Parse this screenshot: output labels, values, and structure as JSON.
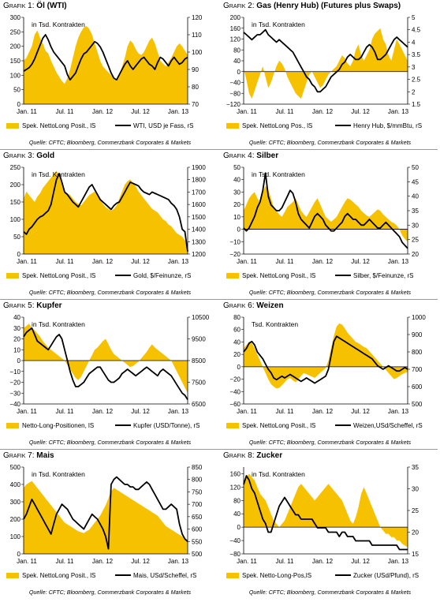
{
  "accent_color": "#F6C200",
  "line_color": "#000000",
  "source_text": "Quelle: CFTC; Bloomberg, Commerzbank Corporates & Markets",
  "chart_data": [
    {
      "prefix": "Grafik 1:",
      "name": "Öl (WTI)",
      "type": "area",
      "unit_label": "in Tsd. Kontrakten",
      "x_ticks": [
        "Jan. 11",
        "Jul. 11",
        "Jan. 12",
        "Jul. 12",
        "Jan. 13"
      ],
      "ylim_left": [
        0,
        300
      ],
      "yticks_left": [
        0,
        50,
        100,
        150,
        200,
        250,
        300
      ],
      "ylim_right": [
        70,
        120
      ],
      "yticks_right": [
        70,
        80,
        90,
        100,
        110,
        120
      ],
      "legend_area": "Spek. NettoLong Posit., lS",
      "legend_line": "WTI, USD je Fass, rS",
      "area_values": [
        150,
        160,
        180,
        200,
        240,
        255,
        230,
        210,
        185,
        175,
        150,
        130,
        110,
        95,
        80,
        70,
        90,
        120,
        160,
        200,
        230,
        250,
        265,
        270,
        260,
        240,
        210,
        180,
        150,
        130,
        120,
        110,
        100,
        90,
        80,
        100,
        130,
        160,
        200,
        220,
        210,
        190,
        175,
        170,
        180,
        200,
        220,
        230,
        210,
        180,
        150,
        140,
        130,
        145,
        160,
        180,
        200,
        210,
        200,
        185,
        170
      ],
      "line_values": [
        89,
        90,
        91,
        93,
        96,
        100,
        104,
        108,
        110,
        107,
        103,
        100,
        98,
        96,
        94,
        92,
        87,
        84,
        86,
        88,
        92,
        96,
        99,
        100,
        102,
        104,
        106,
        105,
        103,
        100,
        96,
        92,
        88,
        85,
        84,
        87,
        90,
        93,
        95,
        92,
        90,
        92,
        94,
        96,
        97,
        95,
        93,
        92,
        90,
        94,
        97,
        96,
        94,
        92,
        95,
        97,
        95,
        93,
        94,
        96,
        97
      ]
    },
    {
      "prefix": "Grafik 2:",
      "name": "Gas (Henry Hub) (Futures plus Swaps)",
      "type": "area",
      "unit_label": "in Tsd. Kontrakten",
      "x_ticks": [
        "Jan. 11",
        "Jul. 11",
        "Jan. 12",
        "Jul. 12",
        "Jan. 13"
      ],
      "ylim_left": [
        -120,
        200
      ],
      "yticks_left": [
        -120,
        -80,
        -40,
        0,
        40,
        80,
        120,
        160,
        200
      ],
      "ylim_right": [
        1.5,
        5.0
      ],
      "yticks_right": [
        1.5,
        2.0,
        2.5,
        3.0,
        3.5,
        4.0,
        4.5,
        5.0
      ],
      "legend_area": "Spek. NettoLong Pos., lS",
      "legend_line": "Henry Hub, $/mmBtu, rS",
      "area_values": [
        10,
        -30,
        -80,
        -100,
        -70,
        -40,
        -10,
        20,
        -20,
        -60,
        -40,
        -10,
        20,
        40,
        30,
        10,
        -20,
        -40,
        -60,
        -80,
        -90,
        -100,
        -70,
        -40,
        -10,
        0,
        -20,
        -40,
        -60,
        -50,
        -30,
        -10,
        0,
        10,
        20,
        40,
        60,
        50,
        30,
        20,
        40,
        80,
        100,
        60,
        40,
        60,
        80,
        120,
        140,
        150,
        160,
        120,
        100,
        60,
        40,
        80,
        120,
        100,
        80,
        60,
        40
      ],
      "line_values": [
        4.4,
        4.3,
        4.2,
        4.1,
        4.2,
        4.3,
        4.3,
        4.4,
        4.5,
        4.3,
        4.2,
        4.1,
        4.0,
        4.1,
        4.0,
        3.9,
        3.8,
        3.7,
        3.6,
        3.4,
        3.2,
        3.0,
        2.8,
        2.6,
        2.5,
        2.3,
        2.2,
        2.0,
        2.0,
        2.1,
        2.2,
        2.4,
        2.6,
        2.7,
        2.8,
        2.9,
        3.1,
        3.2,
        3.4,
        3.5,
        3.4,
        3.3,
        3.3,
        3.4,
        3.6,
        3.8,
        3.9,
        3.8,
        3.6,
        3.3,
        3.3,
        3.4,
        3.5,
        3.7,
        3.9,
        4.1,
        4.2,
        4.1,
        4.0,
        3.9,
        3.8
      ]
    },
    {
      "prefix": "Grafik 3:",
      "name": "Gold",
      "type": "area",
      "unit_label": "in Tsd. Kontrakten",
      "x_ticks": [
        "Jan. 11",
        "Jul. 11",
        "Jan. 12",
        "Jul. 12",
        "Jan. 13"
      ],
      "ylim_left": [
        0,
        250
      ],
      "yticks_left": [
        0,
        50,
        100,
        150,
        200,
        250
      ],
      "ylim_right": [
        1200,
        1900
      ],
      "yticks_right": [
        1200,
        1300,
        1400,
        1500,
        1600,
        1700,
        1800,
        1900
      ],
      "legend_area": "Spek. NettoLong Posit., lS",
      "legend_line": "Gold, $/Feinunze, rS",
      "area_values": [
        160,
        180,
        170,
        160,
        150,
        165,
        175,
        190,
        200,
        210,
        220,
        230,
        240,
        225,
        200,
        180,
        175,
        170,
        160,
        150,
        145,
        140,
        150,
        160,
        170,
        175,
        180,
        170,
        160,
        145,
        135,
        130,
        125,
        130,
        140,
        160,
        180,
        200,
        210,
        215,
        205,
        195,
        180,
        170,
        160,
        150,
        140,
        130,
        125,
        120,
        110,
        100,
        95,
        85,
        80,
        70,
        60,
        55,
        50,
        40,
        30
      ],
      "line_values": [
        1380,
        1360,
        1400,
        1420,
        1450,
        1480,
        1500,
        1510,
        1530,
        1550,
        1600,
        1700,
        1800,
        1850,
        1780,
        1700,
        1680,
        1650,
        1620,
        1600,
        1580,
        1620,
        1660,
        1700,
        1740,
        1760,
        1720,
        1680,
        1640,
        1620,
        1600,
        1580,
        1560,
        1590,
        1610,
        1620,
        1660,
        1700,
        1740,
        1780,
        1770,
        1760,
        1750,
        1720,
        1700,
        1690,
        1680,
        1700,
        1690,
        1680,
        1670,
        1660,
        1650,
        1640,
        1610,
        1590,
        1560,
        1500,
        1400,
        1380,
        1220
      ]
    },
    {
      "prefix": "Grafik 4:",
      "name": "Silber",
      "type": "area",
      "unit_label": "in Tsd. Kontrakten",
      "x_ticks": [
        "Jan. 11",
        "Jul. 11",
        "Jan. 12",
        "Jul. 12",
        "Jan. 13"
      ],
      "ylim_left": [
        -20,
        50
      ],
      "yticks_left": [
        -20,
        -10,
        0,
        10,
        20,
        30,
        40,
        50
      ],
      "ylim_right": [
        20,
        50
      ],
      "yticks_right": [
        20,
        25,
        30,
        35,
        40,
        45,
        50
      ],
      "legend_area": "Spek. NettoLong Posit., lS",
      "legend_line": "Silber, $/Feinunze, rS",
      "area_values": [
        15,
        20,
        25,
        28,
        30,
        25,
        22,
        30,
        35,
        32,
        25,
        18,
        15,
        12,
        10,
        14,
        18,
        20,
        22,
        25,
        20,
        15,
        12,
        10,
        14,
        18,
        22,
        25,
        20,
        15,
        10,
        8,
        6,
        8,
        10,
        14,
        18,
        22,
        25,
        24,
        22,
        20,
        18,
        15,
        13,
        11,
        10,
        12,
        14,
        16,
        15,
        12,
        10,
        8,
        6,
        5,
        3,
        0,
        -5,
        -8,
        -10
      ],
      "line_values": [
        29,
        28,
        29,
        31,
        33,
        36,
        38,
        42,
        48,
        40,
        37,
        36,
        35,
        35,
        36,
        38,
        40,
        42,
        41,
        38,
        34,
        32,
        31,
        30,
        29,
        31,
        33,
        34,
        33,
        32,
        30,
        29,
        28,
        28,
        29,
        30,
        31,
        33,
        34,
        33,
        32,
        32,
        31,
        30,
        30,
        31,
        32,
        31,
        30,
        29,
        29,
        30,
        31,
        30,
        29,
        28,
        27,
        26,
        24,
        23,
        22
      ]
    },
    {
      "prefix": "Grafik 5:",
      "name": "Kupfer",
      "type": "area",
      "unit_label": "in Tsd. Kontrakten",
      "x_ticks": [
        "Jan. 11",
        "Jul. 11",
        "Jan. 12",
        "Jul. 12",
        "Jan. 13"
      ],
      "ylim_left": [
        -40,
        40
      ],
      "yticks_left": [
        -40,
        -30,
        -20,
        -10,
        0,
        10,
        20,
        30,
        40
      ],
      "ylim_right": [
        6500,
        10500
      ],
      "yticks_right": [
        6500,
        7500,
        8500,
        9500,
        10500
      ],
      "legend_area": "Netto-Long-Positionen, lS",
      "legend_line": "Kupfer (USD/Tonne), rS",
      "area_values": [
        30,
        32,
        34,
        30,
        28,
        25,
        22,
        18,
        15,
        12,
        10,
        8,
        6,
        4,
        2,
        0,
        -4,
        -8,
        -12,
        -16,
        -18,
        -15,
        -10,
        -5,
        0,
        5,
        10,
        12,
        15,
        18,
        20,
        15,
        10,
        6,
        4,
        2,
        0,
        -2,
        -4,
        -6,
        -5,
        -3,
        -1,
        2,
        5,
        8,
        12,
        15,
        12,
        10,
        8,
        6,
        4,
        2,
        0,
        -5,
        -10,
        -15,
        -20,
        -25,
        -30
      ],
      "line_values": [
        9600,
        9800,
        9900,
        10000,
        9700,
        9400,
        9300,
        9200,
        9100,
        9000,
        9200,
        9400,
        9600,
        9700,
        9500,
        9000,
        8500,
        8000,
        7600,
        7300,
        7300,
        7400,
        7500,
        7700,
        7900,
        8000,
        8100,
        8200,
        8200,
        8000,
        7800,
        7600,
        7500,
        7500,
        7600,
        7700,
        7900,
        8000,
        8100,
        8000,
        7900,
        7800,
        7900,
        8000,
        8100,
        8200,
        8100,
        8000,
        7900,
        7800,
        8000,
        8100,
        8000,
        7900,
        7800,
        7600,
        7400,
        7200,
        7000,
        6900,
        6700
      ]
    },
    {
      "prefix": "Grafik 6:",
      "name": "Weizen",
      "type": "area",
      "unit_label": "Tsd. Kontrakten",
      "x_ticks": [
        "Jan. 11",
        "Jul. 11",
        "Jan. 12",
        "Jul. 12",
        "Jan. 13"
      ],
      "ylim_left": [
        -60,
        80
      ],
      "yticks_left": [
        -60,
        -40,
        -20,
        0,
        20,
        40,
        60,
        80
      ],
      "ylim_right": [
        500,
        1000
      ],
      "yticks_right": [
        500,
        600,
        700,
        800,
        900,
        1000
      ],
      "legend_area": "Spek. NettoLong Posit., lS",
      "legend_line": "Weizen,USd/Scheffel, rS",
      "area_values": [
        30,
        35,
        40,
        38,
        30,
        20,
        10,
        0,
        -10,
        -20,
        -28,
        -32,
        -35,
        -34,
        -30,
        -25,
        -20,
        -18,
        -22,
        -25,
        -20,
        -15,
        -10,
        -12,
        -14,
        -16,
        -18,
        -14,
        -10,
        -6,
        -2,
        10,
        30,
        50,
        65,
        70,
        68,
        62,
        55,
        50,
        45,
        40,
        38,
        35,
        32,
        30,
        25,
        20,
        15,
        10,
        5,
        0,
        -5,
        -10,
        -15,
        -20,
        -18,
        -15,
        -12,
        -10,
        -8
      ],
      "line_values": [
        800,
        820,
        850,
        860,
        840,
        800,
        780,
        760,
        730,
        700,
        680,
        650,
        640,
        650,
        660,
        650,
        660,
        670,
        660,
        650,
        640,
        630,
        640,
        650,
        640,
        630,
        620,
        630,
        640,
        650,
        660,
        700,
        780,
        860,
        890,
        880,
        870,
        860,
        850,
        840,
        830,
        820,
        810,
        800,
        790,
        780,
        770,
        760,
        740,
        720,
        710,
        700,
        710,
        720,
        710,
        700,
        690,
        690,
        700,
        710,
        700
      ]
    },
    {
      "prefix": "Grafik 7:",
      "name": "Mais",
      "type": "area",
      "unit_label": "in Tsd. Kontrakten",
      "x_ticks": [
        "Jan. 11",
        "Jul. 11",
        "Jan. 12",
        "Jul. 12",
        "Jan. 13"
      ],
      "ylim_left": [
        0,
        500
      ],
      "yticks_left": [
        0,
        100,
        200,
        300,
        400,
        500
      ],
      "ylim_right": [
        500,
        850
      ],
      "yticks_right": [
        500,
        550,
        600,
        650,
        700,
        750,
        800,
        850
      ],
      "legend_area": "Spek. NettoLong Posit., lS",
      "legend_line": "Mais, USd/Scheffel, rS",
      "area_values": [
        380,
        400,
        410,
        420,
        400,
        380,
        360,
        340,
        320,
        300,
        280,
        260,
        240,
        220,
        200,
        180,
        170,
        160,
        150,
        140,
        130,
        125,
        120,
        130,
        140,
        160,
        180,
        200,
        220,
        250,
        280,
        320,
        360,
        380,
        370,
        360,
        350,
        340,
        330,
        320,
        310,
        300,
        290,
        280,
        270,
        260,
        250,
        240,
        230,
        220,
        200,
        180,
        160,
        150,
        140,
        130,
        120,
        110,
        100,
        90,
        80
      ],
      "line_values": [
        640,
        660,
        690,
        720,
        700,
        680,
        660,
        640,
        620,
        600,
        580,
        620,
        660,
        680,
        700,
        690,
        680,
        660,
        640,
        630,
        620,
        610,
        600,
        620,
        640,
        660,
        650,
        640,
        620,
        600,
        570,
        520,
        780,
        800,
        810,
        800,
        790,
        780,
        780,
        770,
        770,
        760,
        760,
        770,
        780,
        790,
        780,
        760,
        740,
        720,
        700,
        680,
        680,
        690,
        700,
        690,
        680,
        620,
        580,
        560,
        550
      ]
    },
    {
      "prefix": "Grafik 8:",
      "name": "Zucker",
      "type": "area",
      "unit_label": "in Tsd. Kontrakten",
      "x_ticks": [
        "Jan. 11",
        "Jul. 11",
        "Jan. 12",
        "Jul. 12",
        "Jan. 13"
      ],
      "ylim_left": [
        -80,
        180
      ],
      "yticks_left": [
        -80,
        -40,
        0,
        40,
        80,
        120,
        160
      ],
      "ylim_right": [
        15,
        35
      ],
      "yticks_right": [
        15,
        20,
        25,
        30,
        35
      ],
      "legend_area": "Spek. Netto-Long-Pos,lS",
      "legend_line": "Zucker (USd/Pfund), rS",
      "area_values": [
        140,
        150,
        160,
        150,
        140,
        120,
        100,
        90,
        80,
        60,
        40,
        20,
        10,
        0,
        10,
        20,
        40,
        60,
        80,
        100,
        120,
        130,
        120,
        110,
        100,
        90,
        80,
        90,
        100,
        110,
        120,
        130,
        120,
        110,
        100,
        90,
        80,
        60,
        40,
        20,
        10,
        30,
        60,
        100,
        120,
        100,
        80,
        60,
        40,
        20,
        0,
        -10,
        -20,
        -20,
        -30,
        -30,
        -40,
        -40,
        -50,
        -55,
        -60
      ],
      "line_values": [
        31,
        33,
        32,
        30,
        29,
        27,
        25,
        23,
        22,
        20,
        20,
        22,
        24,
        26,
        27,
        28,
        27,
        26,
        25,
        24,
        24,
        23,
        23,
        23,
        23,
        23,
        22,
        21,
        21,
        21,
        21,
        20,
        20,
        20,
        20,
        19,
        20,
        20,
        19,
        19,
        19,
        18,
        18,
        18,
        18,
        18,
        18,
        17,
        17,
        17,
        17,
        17,
        17,
        17,
        17,
        17,
        17,
        16,
        16,
        16,
        16
      ]
    }
  ]
}
